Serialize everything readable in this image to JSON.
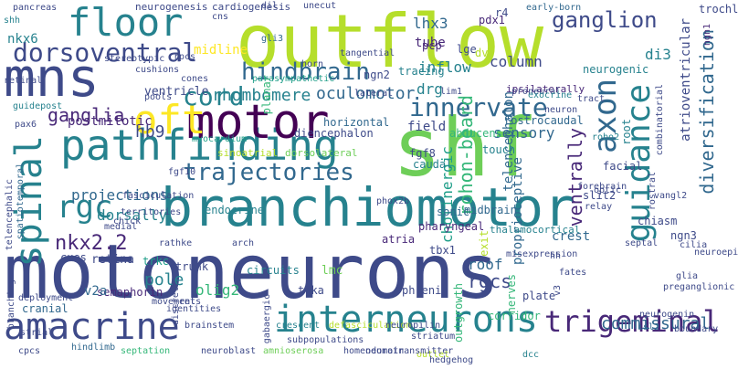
{
  "palette": [
    "#440154",
    "#482878",
    "#3e4a89",
    "#31688e",
    "#26828e",
    "#1f9e89",
    "#35b779",
    "#6ece58",
    "#b5de2b",
    "#fde725"
  ],
  "words": [
    {
      "text": "motoneurons",
      "color": "#3e4a89"
    },
    {
      "text": "outflow",
      "color": "#b5de2b"
    },
    {
      "text": "shf",
      "color": "#6ece58"
    },
    {
      "text": "branchiomotor",
      "color": "#26828e"
    },
    {
      "text": "pathfinding",
      "color": "#26828e"
    },
    {
      "text": "mns",
      "color": "#3e4a89"
    },
    {
      "text": "motor",
      "color": "#440154"
    },
    {
      "text": "guidance",
      "color": "#26828e"
    },
    {
      "text": "interneurons",
      "color": "#26828e"
    },
    {
      "text": "amacrine",
      "color": "#3e4a89"
    },
    {
      "text": "axon",
      "color": "#31688e"
    },
    {
      "text": "spinal",
      "color": "#26828e"
    },
    {
      "text": "floor",
      "color": "#26828e"
    },
    {
      "text": "trigeminal",
      "color": "#482878"
    },
    {
      "text": "dorsoventral",
      "color": "#3e4a89"
    },
    {
      "text": "oft",
      "color": "#fde725"
    },
    {
      "text": "innervate",
      "color": "#31688e"
    },
    {
      "text": "rgc",
      "color": "#26828e"
    },
    {
      "text": "trajectories",
      "color": "#31688e"
    },
    {
      "text": "cord",
      "color": "#26828e"
    },
    {
      "text": "hindbrain",
      "color": "#31688e"
    },
    {
      "text": "ganglion",
      "color": "#3e4a89"
    },
    {
      "text": "diversification",
      "color": "#31688e"
    },
    {
      "text": "atrioventricular",
      "color": "#3e4a89"
    },
    {
      "text": "ventrally",
      "color": "#482878"
    },
    {
      "text": "nkx2.2",
      "color": "#482878"
    },
    {
      "text": "rohon-beard",
      "color": "#35b779"
    },
    {
      "text": "commissural",
      "color": "#31688e"
    },
    {
      "text": "projections",
      "color": "#31688e"
    },
    {
      "text": "rhombomere",
      "color": "#26828e"
    },
    {
      "text": "oculomotor",
      "color": "#31688e"
    },
    {
      "text": "ganglia",
      "color": "#482878"
    },
    {
      "text": "nkx6",
      "color": "#26828e"
    },
    {
      "text": "lhx3",
      "color": "#31688e"
    },
    {
      "text": "di3",
      "color": "#26828e"
    },
    {
      "text": "drg",
      "color": "#26828e"
    },
    {
      "text": "inflow",
      "color": "#26828e"
    },
    {
      "text": "column",
      "color": "#3e4a89"
    },
    {
      "text": "rgcs",
      "color": "#3e4a89"
    },
    {
      "text": "hb9",
      "color": "#3e4a89"
    },
    {
      "text": "ventricle",
      "color": "#3e4a89"
    },
    {
      "text": "postmitotic",
      "color": "#482878"
    },
    {
      "text": "dorsally",
      "color": "#26828e"
    },
    {
      "text": "sensory",
      "color": "#31688e"
    },
    {
      "text": "cholinergic",
      "color": "#1f9e89"
    },
    {
      "text": "proprioceptive",
      "color": "#31688e"
    },
    {
      "text": "midline",
      "color": "#fde725"
    },
    {
      "text": "tube",
      "color": "#482878"
    },
    {
      "text": "field",
      "color": "#3e4a89"
    },
    {
      "text": "pole",
      "color": "#26828e"
    },
    {
      "text": "crest",
      "color": "#31688e"
    },
    {
      "text": "roof",
      "color": "#31688e"
    },
    {
      "text": "telencephalon",
      "color": "#31688e"
    },
    {
      "text": "semaphorin",
      "color": "#482878"
    },
    {
      "text": "olig2",
      "color": "#35b779"
    },
    {
      "text": "v2a",
      "color": "#31688e"
    },
    {
      "text": "cranial",
      "color": "#31688e"
    },
    {
      "text": "lmc",
      "color": "#6ece58"
    },
    {
      "text": "neurogenesis",
      "color": "#3e4a89"
    },
    {
      "text": "cardiogenesis",
      "color": "#3e4a89"
    },
    {
      "text": "hindlimb",
      "color": "#31688e"
    },
    {
      "text": "pharyngeal",
      "color": "#482878"
    },
    {
      "text": "thalamocortical",
      "color": "#26828e"
    },
    {
      "text": "phrenic",
      "color": "#3e4a89"
    },
    {
      "text": "outgrowth",
      "color": "#35b779"
    },
    {
      "text": "corridor",
      "color": "#35b779"
    },
    {
      "text": "sinoatrial",
      "color": "#b5de2b"
    },
    {
      "text": "dorsolateral",
      "color": "#6ece58"
    },
    {
      "text": "diencephalon",
      "color": "#3e4a89"
    },
    {
      "text": "abducens",
      "color": "#35b779"
    },
    {
      "text": "myocardium",
      "color": "#1f9e89"
    },
    {
      "text": "horizontal",
      "color": "#31688e"
    },
    {
      "text": "rostrocaudal",
      "color": "#31688e"
    },
    {
      "text": "chiasm",
      "color": "#3e4a89"
    },
    {
      "text": "fgf8",
      "color": "#3e4a89"
    },
    {
      "text": "midbrain",
      "color": "#31688e"
    },
    {
      "text": "plate",
      "color": "#3e4a89"
    },
    {
      "text": "nerves",
      "color": "#35b779"
    },
    {
      "text": "striatum",
      "color": "#3e4a89"
    },
    {
      "text": "trka",
      "color": "#3e4a89"
    },
    {
      "text": "trkc",
      "color": "#1f9e89"
    },
    {
      "text": "retina",
      "color": "#3e4a89"
    },
    {
      "text": "cues",
      "color": "#3e4a89"
    },
    {
      "text": "trunk",
      "color": "#3e4a89"
    },
    {
      "text": "circuits",
      "color": "#26828e"
    },
    {
      "text": "atria",
      "color": "#482878"
    },
    {
      "text": "tbx1",
      "color": "#3e4a89"
    },
    {
      "text": "exit",
      "color": "#b5de2b"
    },
    {
      "text": "facial",
      "color": "#3e4a89"
    },
    {
      "text": "root",
      "color": "#26828e"
    },
    {
      "text": "ngn3",
      "color": "#3e4a89"
    },
    {
      "text": "slit2",
      "color": "#3e4a89"
    },
    {
      "text": "pdx1",
      "color": "#482878"
    },
    {
      "text": "ipsilaterally",
      "color": "#482878"
    },
    {
      "text": "lge",
      "color": "#3e4a89"
    },
    {
      "text": "pcp",
      "color": "#482878"
    },
    {
      "text": "ngn2",
      "color": "#3e4a89"
    },
    {
      "text": "gli3",
      "color": "#31688e"
    },
    {
      "text": "r4",
      "color": "#3e4a89"
    },
    {
      "text": "early-born",
      "color": "#31688e"
    },
    {
      "text": "trochlear",
      "color": "#3e4a89"
    },
    {
      "text": "ngn1",
      "color": "#482878"
    },
    {
      "text": "endocrine",
      "color": "#26828e"
    },
    {
      "text": "sonic",
      "color": "#31688e"
    },
    {
      "text": "shh",
      "color": "#26828e"
    },
    {
      "text": "pancreas",
      "color": "#3e4a89"
    },
    {
      "text": "neurogenic",
      "color": "#26828e"
    },
    {
      "text": "touch",
      "color": "#26828e"
    },
    {
      "text": "caudal",
      "color": "#26828e"
    },
    {
      "text": "dv",
      "color": "#b5de2b"
    },
    {
      "text": "tracing",
      "color": "#26828e"
    },
    {
      "text": "planar",
      "color": "#35b779"
    },
    {
      "text": "unecut",
      "color": "#3e4a89"
    },
    {
      "text": "dil",
      "color": "#3e4a89"
    },
    {
      "text": "hh",
      "color": "#3e4a89"
    },
    {
      "text": "fates",
      "color": "#3e4a89"
    },
    {
      "text": "glia",
      "color": "#3e4a89"
    },
    {
      "text": "cilia",
      "color": "#3e4a89"
    },
    {
      "text": "boundary",
      "color": "#3e4a89"
    },
    {
      "text": "neurogenin",
      "color": "#3e4a89"
    },
    {
      "text": "isl2",
      "color": "#31688e"
    },
    {
      "text": "dcc",
      "color": "#26828e"
    },
    {
      "text": "outlet",
      "color": "#b5de2b"
    },
    {
      "text": "hedgehog",
      "color": "#3e4a89"
    },
    {
      "text": "neurotransmitter",
      "color": "#3e4a89"
    },
    {
      "text": "homeodomain",
      "color": "#3e4a89"
    },
    {
      "text": "amnioserosa",
      "color": "#6ece58"
    },
    {
      "text": "neuroblast",
      "color": "#3e4a89"
    },
    {
      "text": "septation",
      "color": "#35b779"
    },
    {
      "text": "subpopulations",
      "color": "#3e4a89"
    },
    {
      "text": "cpcs",
      "color": "#3e4a89"
    },
    {
      "text": "crescent",
      "color": "#26828e"
    },
    {
      "text": "brainstem",
      "color": "#3e4a89"
    },
    {
      "text": "defasciculation",
      "color": "#b5de2b"
    },
    {
      "text": "neuropilin",
      "color": "#3e4a89"
    },
    {
      "text": "strial",
      "color": "#3e4a89"
    },
    {
      "text": "identities",
      "color": "#3e4a89"
    },
    {
      "text": "movements",
      "color": "#3e4a89"
    },
    {
      "text": "discrete",
      "color": "#3e4a89"
    },
    {
      "text": "branching",
      "color": "#3e4a89"
    },
    {
      "text": "telencephalic",
      "color": "#3e4a89"
    },
    {
      "text": "spatiotemporal",
      "color": "#31688e"
    },
    {
      "text": "guidepost",
      "color": "#26828e"
    },
    {
      "text": "retinal",
      "color": "#3e4a89"
    },
    {
      "text": "cns",
      "color": "#3e4a89"
    },
    {
      "text": "rathke",
      "color": "#3e4a89"
    },
    {
      "text": "arch",
      "color": "#3e4a89"
    },
    {
      "text": "medial",
      "color": "#3e4a89"
    },
    {
      "text": "chick",
      "color": "#3e4a89"
    },
    {
      "text": "territories",
      "color": "#3e4a89"
    },
    {
      "text": "fasciculation",
      "color": "#3e4a89"
    },
    {
      "text": "fgf10",
      "color": "#3e4a89"
    },
    {
      "text": "pools",
      "color": "#3e4a89"
    },
    {
      "text": "cones",
      "color": "#3e4a89"
    },
    {
      "text": "parasympathetic",
      "color": "#1f9e89"
    },
    {
      "text": "horn",
      "color": "#3e4a89"
    },
    {
      "text": "tangential",
      "color": "#3e4a89"
    },
    {
      "text": "cushions",
      "color": "#3e4a89"
    },
    {
      "text": "rpcs",
      "color": "#3e4a89"
    },
    {
      "text": "stereotypic",
      "color": "#3e4a89"
    },
    {
      "text": "lateral",
      "color": "#3e4a89"
    },
    {
      "text": "lim1",
      "color": "#3e4a89"
    },
    {
      "text": "proneural",
      "color": "#3e4a89"
    },
    {
      "text": "exocrine",
      "color": "#26828e"
    },
    {
      "text": "neuron",
      "color": "#3e4a89"
    },
    {
      "text": "tract",
      "color": "#3e4a89"
    },
    {
      "text": "robo2",
      "color": "#26828e"
    },
    {
      "text": "forebrain",
      "color": "#3e4a89"
    },
    {
      "text": "relay",
      "color": "#3e4a89"
    },
    {
      "text": "optic",
      "color": "#3e4a89"
    },
    {
      "text": "septal",
      "color": "#3e4a89"
    },
    {
      "text": "vangl2",
      "color": "#3e4a89"
    },
    {
      "text": "rostral",
      "color": "#3e4a89"
    },
    {
      "text": "pax6",
      "color": "#3e4a89"
    },
    {
      "text": "phox2b",
      "color": "#3e4a89"
    },
    {
      "text": "neuroepithelium",
      "color": "#3e4a89"
    },
    {
      "text": "deployment",
      "color": "#3e4a89"
    },
    {
      "text": "gabaergic",
      "color": "#3e4a89"
    },
    {
      "text": "ret",
      "color": "#3e4a89"
    },
    {
      "text": "v3",
      "color": "#3e4a89"
    },
    {
      "text": "misexpression",
      "color": "#3e4a89"
    },
    {
      "text": "combinatorial",
      "color": "#3e4a89"
    },
    {
      "text": "preganglionic",
      "color": "#3e4a89"
    },
    {
      "text": "telencephalon",
      "color": "#3e4a89"
    },
    {
      "text": "connectivity",
      "color": "#26828e"
    },
    {
      "text": "enteric",
      "color": "#3e4a89"
    }
  ]
}
